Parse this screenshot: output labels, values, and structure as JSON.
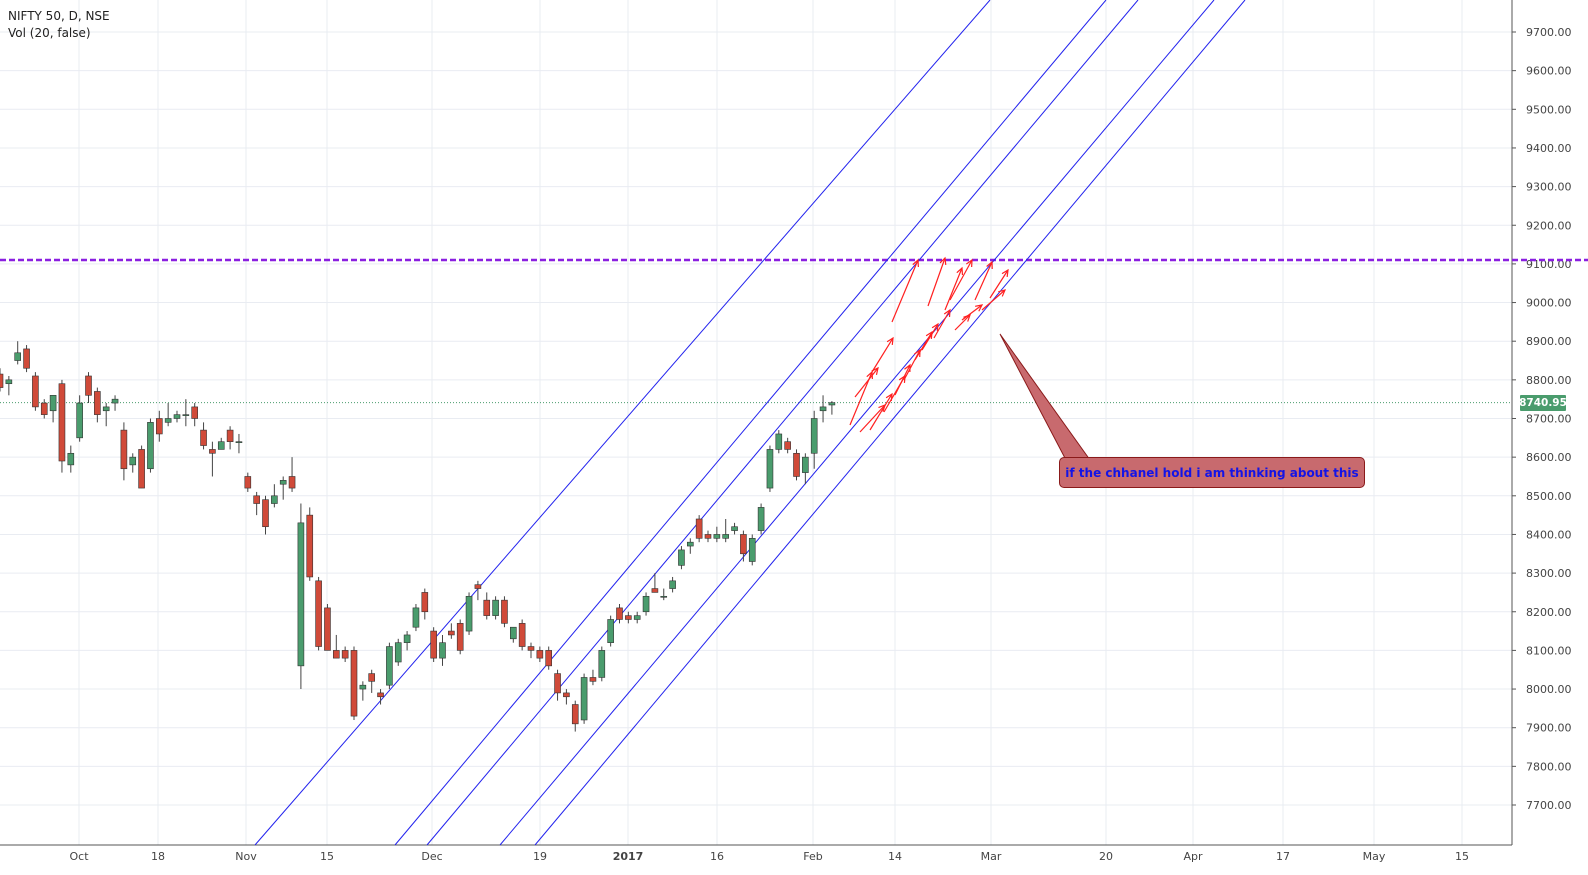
{
  "header": {
    "symbol_line": "NIFTY 50, D, NSE",
    "volume_line": "Vol (20, false)"
  },
  "annotation": {
    "text": "if the chhanel hold i am thinking about this",
    "color": "#1414e6",
    "fill": "#c86a6e"
  },
  "last_price_label": "8740.95",
  "colors": {
    "up": "#4a9c6d",
    "down": "#d04a39",
    "channel": "#2222ee",
    "resistance": "#8a1fe0",
    "arrows": "#ff2020",
    "grid": "#e9ecf2"
  },
  "chart_data": {
    "type": "candlestick",
    "x_axis_labels": [
      "Oct",
      "18",
      "Nov",
      "15",
      "Dec",
      "19",
      "2017",
      "16",
      "Feb",
      "14",
      "Mar",
      "20",
      "Apr",
      "17",
      "May",
      "15"
    ],
    "y_axis_labels": [
      "9700.00",
      "9600.00",
      "9500.00",
      "9400.00",
      "9300.00",
      "9200.00",
      "9100.00",
      "9000.00",
      "8900.00",
      "8800.00",
      "8700.00",
      "8600.00",
      "8500.00",
      "8400.00",
      "8300.00",
      "8200.00",
      "8100.00",
      "8000.00",
      "7900.00",
      "7800.00",
      "7700.00"
    ],
    "ylim": [
      7615,
      9775
    ],
    "grid": true,
    "last_price": 8740.95,
    "resistance_level": 9110,
    "candles": [
      {
        "o": 8815,
        "h": 8830,
        "l": 8770,
        "c": 8780
      },
      {
        "o": 8790,
        "h": 8810,
        "l": 8760,
        "c": 8800
      },
      {
        "o": 8850,
        "h": 8900,
        "l": 8840,
        "c": 8870
      },
      {
        "o": 8880,
        "h": 8890,
        "l": 8820,
        "c": 8830
      },
      {
        "o": 8810,
        "h": 8820,
        "l": 8720,
        "c": 8730
      },
      {
        "o": 8740,
        "h": 8750,
        "l": 8700,
        "c": 8710
      },
      {
        "o": 8720,
        "h": 8760,
        "l": 8690,
        "c": 8760
      },
      {
        "o": 8790,
        "h": 8800,
        "l": 8560,
        "c": 8590
      },
      {
        "o": 8580,
        "h": 8630,
        "l": 8560,
        "c": 8610
      },
      {
        "o": 8650,
        "h": 8760,
        "l": 8640,
        "c": 8740
      },
      {
        "o": 8810,
        "h": 8820,
        "l": 8740,
        "c": 8760
      },
      {
        "o": 8770,
        "h": 8780,
        "l": 8690,
        "c": 8710
      },
      {
        "o": 8720,
        "h": 8740,
        "l": 8680,
        "c": 8730
      },
      {
        "o": 8740,
        "h": 8760,
        "l": 8720,
        "c": 8750
      },
      {
        "o": 8670,
        "h": 8690,
        "l": 8540,
        "c": 8570
      },
      {
        "o": 8580,
        "h": 8610,
        "l": 8560,
        "c": 8600
      },
      {
        "o": 8620,
        "h": 8630,
        "l": 8520,
        "c": 8520
      },
      {
        "o": 8570,
        "h": 8700,
        "l": 8560,
        "c": 8690
      },
      {
        "o": 8700,
        "h": 8720,
        "l": 8640,
        "c": 8660
      },
      {
        "o": 8690,
        "h": 8740,
        "l": 8680,
        "c": 8700
      },
      {
        "o": 8700,
        "h": 8720,
        "l": 8690,
        "c": 8710
      },
      {
        "o": 8710,
        "h": 8750,
        "l": 8680,
        "c": 8710
      },
      {
        "o": 8730,
        "h": 8740,
        "l": 8680,
        "c": 8700
      },
      {
        "o": 8670,
        "h": 8690,
        "l": 8620,
        "c": 8630
      },
      {
        "o": 8620,
        "h": 8640,
        "l": 8550,
        "c": 8610
      },
      {
        "o": 8620,
        "h": 8650,
        "l": 8620,
        "c": 8640
      },
      {
        "o": 8670,
        "h": 8680,
        "l": 8620,
        "c": 8640
      },
      {
        "o": 8640,
        "h": 8660,
        "l": 8610,
        "c": 8640
      },
      {
        "o": 8550,
        "h": 8560,
        "l": 8510,
        "c": 8520
      },
      {
        "o": 8500,
        "h": 8510,
        "l": 8450,
        "c": 8480
      },
      {
        "o": 8490,
        "h": 8500,
        "l": 8400,
        "c": 8420
      },
      {
        "o": 8480,
        "h": 8530,
        "l": 8470,
        "c": 8500
      },
      {
        "o": 8530,
        "h": 8550,
        "l": 8490,
        "c": 8540
      },
      {
        "o": 8550,
        "h": 8600,
        "l": 8510,
        "c": 8520
      },
      {
        "o": 8060,
        "h": 8480,
        "l": 8000,
        "c": 8430
      },
      {
        "o": 8450,
        "h": 8470,
        "l": 8280,
        "c": 8290
      },
      {
        "o": 8280,
        "h": 8290,
        "l": 8100,
        "c": 8110
      },
      {
        "o": 8210,
        "h": 8220,
        "l": 8100,
        "c": 8100
      },
      {
        "o": 8100,
        "h": 8140,
        "l": 8080,
        "c": 8080
      },
      {
        "o": 8100,
        "h": 8110,
        "l": 8070,
        "c": 8080
      },
      {
        "o": 8100,
        "h": 8110,
        "l": 7920,
        "c": 7930
      },
      {
        "o": 8000,
        "h": 8020,
        "l": 7970,
        "c": 8010
      },
      {
        "o": 8040,
        "h": 8050,
        "l": 7990,
        "c": 8020
      },
      {
        "o": 7990,
        "h": 8000,
        "l": 7960,
        "c": 7980
      },
      {
        "o": 8010,
        "h": 8120,
        "l": 8000,
        "c": 8110
      },
      {
        "o": 8070,
        "h": 8130,
        "l": 8060,
        "c": 8120
      },
      {
        "o": 8120,
        "h": 8150,
        "l": 8100,
        "c": 8140
      },
      {
        "o": 8160,
        "h": 8220,
        "l": 8150,
        "c": 8210
      },
      {
        "o": 8250,
        "h": 8260,
        "l": 8180,
        "c": 8200
      },
      {
        "o": 8150,
        "h": 8160,
        "l": 8070,
        "c": 8080
      },
      {
        "o": 8080,
        "h": 8140,
        "l": 8060,
        "c": 8120
      },
      {
        "o": 8150,
        "h": 8170,
        "l": 8130,
        "c": 8140
      },
      {
        "o": 8170,
        "h": 8180,
        "l": 8090,
        "c": 8100
      },
      {
        "o": 8150,
        "h": 8250,
        "l": 8140,
        "c": 8240
      },
      {
        "o": 8270,
        "h": 8280,
        "l": 8230,
        "c": 8260
      },
      {
        "o": 8230,
        "h": 8250,
        "l": 8180,
        "c": 8190
      },
      {
        "o": 8190,
        "h": 8240,
        "l": 8180,
        "c": 8230
      },
      {
        "o": 8230,
        "h": 8240,
        "l": 8160,
        "c": 8170
      },
      {
        "o": 8130,
        "h": 8160,
        "l": 8120,
        "c": 8160
      },
      {
        "o": 8170,
        "h": 8180,
        "l": 8100,
        "c": 8110
      },
      {
        "o": 8110,
        "h": 8120,
        "l": 8080,
        "c": 8100
      },
      {
        "o": 8100,
        "h": 8110,
        "l": 8070,
        "c": 8080
      },
      {
        "o": 8100,
        "h": 8110,
        "l": 8050,
        "c": 8060
      },
      {
        "o": 8040,
        "h": 8050,
        "l": 7970,
        "c": 7990
      },
      {
        "o": 7990,
        "h": 8000,
        "l": 7960,
        "c": 7980
      },
      {
        "o": 7960,
        "h": 7970,
        "l": 7890,
        "c": 7910
      },
      {
        "o": 7920,
        "h": 8040,
        "l": 7910,
        "c": 8030
      },
      {
        "o": 8030,
        "h": 8050,
        "l": 8010,
        "c": 8020
      },
      {
        "o": 8030,
        "h": 8110,
        "l": 8020,
        "c": 8100
      },
      {
        "o": 8120,
        "h": 8190,
        "l": 8110,
        "c": 8180
      },
      {
        "o": 8210,
        "h": 8220,
        "l": 8170,
        "c": 8180
      },
      {
        "o": 8190,
        "h": 8200,
        "l": 8170,
        "c": 8180
      },
      {
        "o": 8180,
        "h": 8200,
        "l": 8170,
        "c": 8190
      },
      {
        "o": 8200,
        "h": 8250,
        "l": 8190,
        "c": 8240
      },
      {
        "o": 8260,
        "h": 8300,
        "l": 8250,
        "c": 8250
      },
      {
        "o": 8240,
        "h": 8260,
        "l": 8230,
        "c": 8240
      },
      {
        "o": 8260,
        "h": 8290,
        "l": 8250,
        "c": 8280
      },
      {
        "o": 8320,
        "h": 8370,
        "l": 8310,
        "c": 8360
      },
      {
        "o": 8370,
        "h": 8390,
        "l": 8350,
        "c": 8380
      },
      {
        "o": 8440,
        "h": 8450,
        "l": 8380,
        "c": 8390
      },
      {
        "o": 8400,
        "h": 8410,
        "l": 8380,
        "c": 8390
      },
      {
        "o": 8390,
        "h": 8420,
        "l": 8380,
        "c": 8400
      },
      {
        "o": 8390,
        "h": 8440,
        "l": 8380,
        "c": 8400
      },
      {
        "o": 8410,
        "h": 8430,
        "l": 8400,
        "c": 8420
      },
      {
        "o": 8400,
        "h": 8410,
        "l": 8330,
        "c": 8350
      },
      {
        "o": 8330,
        "h": 8400,
        "l": 8320,
        "c": 8390
      },
      {
        "o": 8410,
        "h": 8480,
        "l": 8400,
        "c": 8470
      },
      {
        "o": 8520,
        "h": 8630,
        "l": 8510,
        "c": 8620
      },
      {
        "o": 8620,
        "h": 8670,
        "l": 8610,
        "c": 8660
      },
      {
        "o": 8640,
        "h": 8650,
        "l": 8610,
        "c": 8620
      },
      {
        "o": 8610,
        "h": 8620,
        "l": 8540,
        "c": 8550
      },
      {
        "o": 8560,
        "h": 8610,
        "l": 8530,
        "c": 8600
      },
      {
        "o": 8610,
        "h": 8720,
        "l": 8570,
        "c": 8700
      },
      {
        "o": 8720,
        "h": 8760,
        "l": 8690,
        "c": 8730
      },
      {
        "o": 8735,
        "h": 8745,
        "l": 8710,
        "c": 8741
      }
    ]
  }
}
